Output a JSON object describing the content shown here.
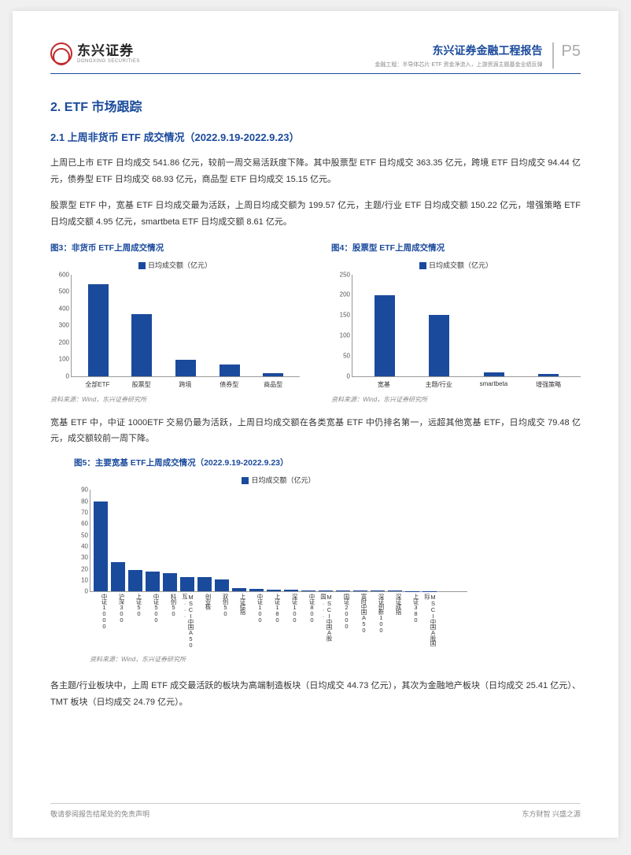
{
  "header": {
    "logo_cn": "东兴证券",
    "logo_en": "DONGXING SECURITIES",
    "report_title": "东兴证券金融工程报告",
    "report_sub": "金融工程：半导体芯片 ETF 资金净流入，上游资源主题基金业绩反弹",
    "page_num": "P5"
  },
  "section": {
    "h2": "2. ETF 市场跟踪",
    "h3": "2.1 上周非货币 ETF 成交情况（2022.9.19-2022.9.23）",
    "para1": "上周已上市 ETF 日均成交 541.86 亿元，较前一周交易活跃度下降。其中股票型 ETF 日均成交 363.35 亿元，跨境 ETF 日均成交 94.44 亿元，债券型 ETF 日均成交 68.93 亿元，商品型 ETF 日均成交 15.15 亿元。",
    "para2": "股票型 ETF 中，宽基 ETF 日均成交最为活跃，上周日均成交额为 199.57 亿元，主题/行业 ETF 日均成交额 150.22 亿元，增强策略 ETF 日均成交额 4.95 亿元，smartbeta ETF 日均成交额 8.61 亿元。",
    "para3": "宽基 ETF 中，中证 1000ETF 交易仍最为活跃，上周日均成交额在各类宽基 ETF 中仍排名第一，远超其他宽基 ETF，日均成交 79.48 亿元，成交额较前一周下降。",
    "para4": "各主题/行业板块中，上周 ETF 成交最活跃的板块为高端制造板块（日均成交 44.73 亿元），其次为金融地产板块（日均成交 25.41 亿元）、TMT 板块（日均成交 24.79 亿元）。"
  },
  "chart3": {
    "title": "图3：非货币 ETF上周成交情况",
    "legend": "日均成交额（亿元）",
    "color": "#1a4a9c",
    "ymax": 600,
    "yticks": [
      0,
      100,
      200,
      300,
      400,
      500,
      600
    ],
    "categories": [
      "全部ETF",
      "股票型",
      "跨境",
      "债券型",
      "商品型"
    ],
    "values": [
      541.86,
      363.35,
      94.44,
      68.93,
      15.15
    ],
    "source": "资料来源：Wind，东兴证券研究所"
  },
  "chart4": {
    "title": "图4：股票型 ETF上周成交情况",
    "legend": "日均成交额（亿元）",
    "color": "#1a4a9c",
    "ymax": 250,
    "yticks": [
      0,
      50,
      100,
      150,
      200,
      250
    ],
    "categories": [
      "宽基",
      "主题/行业",
      "smartbeta",
      "增强策略"
    ],
    "values": [
      199.57,
      150.22,
      8.61,
      4.95
    ],
    "source": "资料来源：Wind，东兴证券研究所"
  },
  "chart5": {
    "title": "图5：主要宽基 ETF上周成交情况（2022.9.19-2022.9.23）",
    "legend": "日均成交额（亿元）",
    "color": "#1a4a9c",
    "ymax": 90,
    "yticks": [
      0,
      10,
      20,
      30,
      40,
      50,
      60,
      70,
      80,
      90
    ],
    "categories": [
      "中证1000",
      "沪深300",
      "上证50",
      "中证500",
      "科创50",
      "MSCI中国A50互...",
      "创业板",
      "双创50",
      "上证综指",
      "中证100",
      "上证180",
      "深证100",
      "中证800",
      "MSCI中国A股国...",
      "国证2000",
      "富时中国A50",
      "深证创新100",
      "深证成指",
      "上证380",
      "MSCI中国A股国际"
    ],
    "values": [
      79.48,
      26,
      19,
      18,
      16,
      13,
      13,
      11,
      3,
      2,
      1.5,
      1.5,
      1.2,
      1,
      1,
      0.8,
      0.7,
      0.6,
      0.5,
      0.4
    ],
    "source": "资料来源：Wind，东兴证券研究所"
  },
  "footer": {
    "left": "敬请参阅报告结尾处的免责声明",
    "right": "东方财智 兴盛之源"
  }
}
